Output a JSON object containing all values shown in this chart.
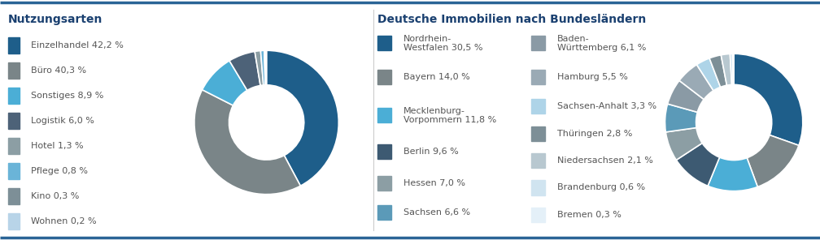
{
  "chart1_title": "Nutzungsarten",
  "chart1_labels": [
    "Einzelhandel 42,2 %",
    "Büro 40,3 %",
    "Sonstiges 8,9 %",
    "Logistik 6,0 %",
    "Hotel 1,3 %",
    "Pflege 0,8 %",
    "Kino 0,3 %",
    "Wohnen 0,2 %"
  ],
  "chart1_values": [
    42.2,
    40.3,
    8.9,
    6.0,
    1.3,
    0.8,
    0.3,
    0.2
  ],
  "chart1_colors": [
    "#1e5e8a",
    "#7a8588",
    "#4baed6",
    "#4d6278",
    "#8c9ea4",
    "#6ab4d8",
    "#7d8f97",
    "#b8d4e8"
  ],
  "chart2_title": "Deutsche Immobilien nach Bundesländern",
  "chart2_labels_col1": [
    "Nordrhein-\nWestfalen 30,5 %",
    "Bayern 14,0 %",
    "Mecklenburg-\nVorpommern 11,8 %",
    "Berlin 9,6 %",
    "Hessen 7,0 %",
    "Sachsen 6,6 %"
  ],
  "chart2_labels_col2": [
    "Baden-\nWürttemberg 6,1 %",
    "Hamburg 5,5 %",
    "Sachsen-Anhalt 3,3 %",
    "Thüringen 2,8 %",
    "Niedersachsen 2,1 %",
    "Brandenburg 0,6 %",
    "Bremen 0,3 %"
  ],
  "chart2_values": [
    30.5,
    14.0,
    11.8,
    9.6,
    7.0,
    6.6,
    6.1,
    5.5,
    3.3,
    2.8,
    2.1,
    0.6,
    0.3
  ],
  "chart2_colors": [
    "#1e5e8a",
    "#7a8588",
    "#4baed6",
    "#3d5a72",
    "#8c9ea4",
    "#5b9ab8",
    "#8a9aa5",
    "#9aaab5",
    "#aed4e8",
    "#7d8f97",
    "#b8c8d0",
    "#d0e4f0",
    "#e4f0f8"
  ],
  "bg_color": "#ffffff",
  "title_color": "#1a4070",
  "legend_text_color": "#555555",
  "border_color": "#2a6496",
  "title_fontsize": 10,
  "legend_fontsize": 8
}
